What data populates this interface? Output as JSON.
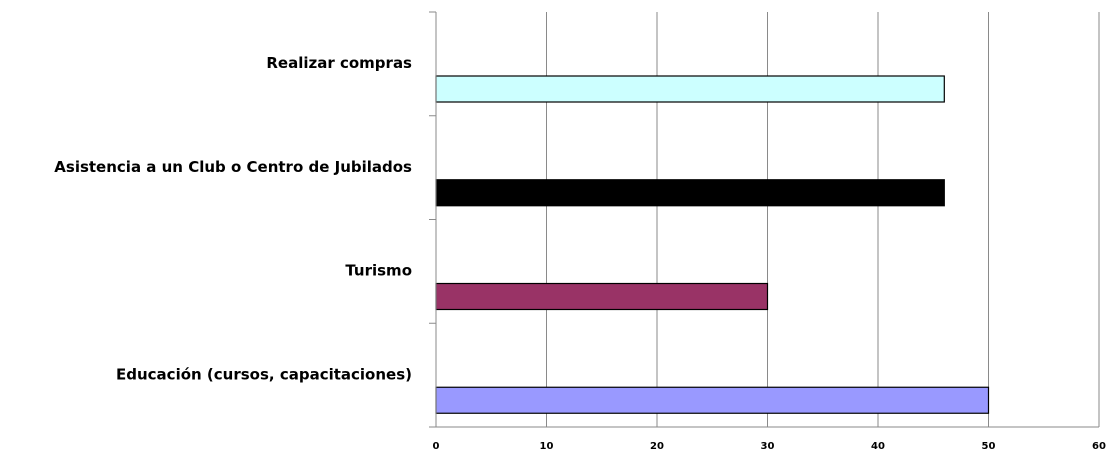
{
  "chart_data": {
    "type": "bar",
    "orientation": "horizontal",
    "title": "",
    "xlabel": "",
    "ylabel": "",
    "categories": [
      "Realizar compras",
      "Asistencia a un Club o Centro de Jubilados",
      "Turismo",
      "Educación  (cursos, capacitaciones)"
    ],
    "values": [
      46,
      46,
      30,
      50
    ],
    "colors": [
      "#ccffff",
      "#000000",
      "#993366",
      "#9999ff"
    ],
    "xlim": [
      0,
      60
    ],
    "xticks": [
      "0",
      "10",
      "20",
      "30",
      "40",
      "50",
      "60"
    ],
    "grid": "vertical",
    "legend": "none"
  }
}
